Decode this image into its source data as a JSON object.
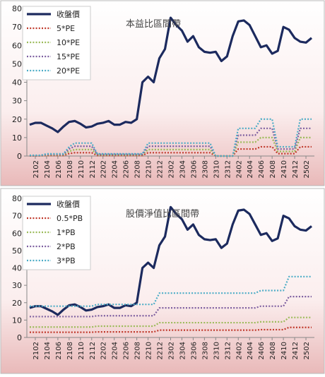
{
  "chart_data": [
    {
      "type": "line",
      "title": "本益比區間帶",
      "legend": "upper left",
      "grid": false,
      "categories": [
        null,
        "2102",
        null,
        "2104",
        null,
        "2106",
        null,
        "2108",
        null,
        "2110",
        null,
        "2112",
        null,
        "2202",
        null,
        "2204",
        null,
        "2206",
        null,
        "2208",
        null,
        "2210",
        null,
        "2212",
        null,
        "2302",
        null,
        "2304",
        null,
        "2306",
        null,
        "2308",
        null,
        "2310",
        null,
        "2312",
        null,
        "2402",
        null,
        "2404",
        null,
        "2406",
        null,
        "2408",
        null,
        "2410",
        null,
        "2412",
        null,
        "2502",
        null
      ],
      "ylim": [
        0,
        80
      ],
      "yticks": [
        0,
        10,
        20,
        30,
        40,
        50,
        60,
        70,
        80
      ],
      "series": [
        {
          "name": "收盤價",
          "color": "#1c2a5e",
          "width": 3.2,
          "values": [
            17,
            18,
            18,
            16.5,
            15,
            13,
            16,
            18.5,
            19,
            17.5,
            15.5,
            16,
            17.5,
            18,
            19,
            17,
            17,
            18.5,
            18,
            20,
            40,
            43,
            40,
            53,
            58,
            75,
            71,
            68,
            62,
            65,
            59,
            56.5,
            56,
            56.5,
            51.5,
            54,
            65,
            73,
            73.5,
            71,
            65,
            59,
            60,
            55.5,
            57,
            70,
            68.5,
            64,
            62,
            61.5,
            64
          ]
        },
        {
          "name": "5*PE",
          "color": "#c0392b",
          "width": 2.2,
          "values": [
            0.1,
            0.1,
            0.1,
            0.3,
            0.3,
            0.3,
            0.3,
            1.3,
            1.8,
            1.8,
            1.8,
            1.8,
            0.3,
            0.3,
            0.3,
            0.3,
            0.3,
            0.3,
            0.3,
            0.3,
            0.3,
            1.8,
            1.8,
            1.8,
            1.8,
            1.8,
            1.8,
            1.8,
            1.8,
            1.8,
            1.8,
            1.8,
            1.8,
            0,
            0,
            0,
            0,
            3.8,
            3.8,
            3.8,
            3.8,
            5,
            5,
            5,
            1.3,
            1.3,
            1.3,
            1.3,
            5,
            5,
            5
          ]
        },
        {
          "name": "10*PE",
          "color": "#9bbb59",
          "width": 2.2,
          "values": [
            0.2,
            0.2,
            0.2,
            0.6,
            0.6,
            0.6,
            0.6,
            2.5,
            3.5,
            3.5,
            3.5,
            3.5,
            0.6,
            0.6,
            0.6,
            0.6,
            0.6,
            0.6,
            0.6,
            0.6,
            0.6,
            3.5,
            3.5,
            3.5,
            3.5,
            3.5,
            3.5,
            3.5,
            3.5,
            3.5,
            3.5,
            3.5,
            3.5,
            0,
            0,
            0,
            0,
            7.5,
            7.5,
            7.5,
            7.5,
            10,
            10,
            10,
            2.5,
            2.5,
            2.5,
            2.5,
            10,
            10,
            10
          ]
        },
        {
          "name": "15*PE",
          "color": "#7d5fa0",
          "width": 2.2,
          "values": [
            0.3,
            0.3,
            0.3,
            0.9,
            0.9,
            0.9,
            0.9,
            3.8,
            5.3,
            5.3,
            5.3,
            5.3,
            0.9,
            0.9,
            0.9,
            0.9,
            0.9,
            0.9,
            0.9,
            0.9,
            0.9,
            5.3,
            5.3,
            5.3,
            5.3,
            5.3,
            5.3,
            5.3,
            5.3,
            5.3,
            5.3,
            5.3,
            5.3,
            0,
            0,
            0,
            0,
            11.3,
            11.3,
            11.3,
            11.3,
            15,
            15,
            15,
            3.8,
            3.8,
            3.8,
            3.8,
            15,
            15,
            15
          ]
        },
        {
          "name": "20*PE",
          "color": "#4bacc6",
          "width": 2.2,
          "values": [
            0.4,
            0.4,
            0.4,
            1.2,
            1.2,
            1.2,
            1.2,
            5,
            7,
            7,
            7,
            7,
            1.2,
            1.2,
            1.2,
            1.2,
            1.2,
            1.2,
            1.2,
            1.2,
            1.2,
            7,
            7,
            7,
            7,
            7,
            7,
            7,
            7,
            7,
            7,
            7,
            7,
            0,
            0,
            0,
            0,
            15,
            15,
            15,
            15,
            20,
            20,
            20,
            5,
            5,
            5,
            5,
            20,
            20,
            20
          ]
        }
      ]
    },
    {
      "type": "line",
      "title": "股價淨值比區間帶",
      "legend": "upper left",
      "grid": false,
      "categories": [
        null,
        "2102",
        null,
        "2104",
        null,
        "2106",
        null,
        "2108",
        null,
        "2110",
        null,
        "2112",
        null,
        "2202",
        null,
        "2204",
        null,
        "2206",
        null,
        "2208",
        null,
        "2210",
        null,
        "2212",
        null,
        "2302",
        null,
        "2304",
        null,
        "2306",
        null,
        "2308",
        null,
        "2310",
        null,
        "2312",
        null,
        "2402",
        null,
        "2404",
        null,
        "2406",
        null,
        "2408",
        null,
        "2410",
        null,
        "2412",
        null,
        "2502",
        null
      ],
      "ylim": [
        0,
        80
      ],
      "yticks": [
        0,
        10,
        20,
        30,
        40,
        50,
        60,
        70,
        80
      ],
      "series": [
        {
          "name": "收盤價",
          "color": "#1c2a5e",
          "width": 3.2,
          "values": [
            17,
            18,
            18,
            16.5,
            15,
            13,
            16,
            18.5,
            19,
            17.5,
            15.5,
            16,
            17.5,
            18,
            19,
            17,
            17,
            18.5,
            18,
            20,
            40,
            43,
            40,
            53,
            58,
            75,
            71,
            68,
            62,
            65,
            59,
            56.5,
            56,
            56.5,
            51.5,
            54,
            65,
            73,
            73.5,
            71,
            65,
            59,
            60,
            55.5,
            57,
            70,
            68.5,
            64,
            62,
            61.5,
            64
          ]
        },
        {
          "name": "0.5*PB",
          "color": "#c0392b",
          "width": 2.2,
          "values": [
            3,
            3,
            3,
            3,
            3,
            3,
            3,
            3,
            3,
            3,
            3,
            3,
            3.2,
            3.2,
            3.2,
            3.2,
            3.2,
            3.2,
            3.2,
            3.2,
            3.2,
            3.2,
            3.2,
            4.2,
            4.2,
            4.2,
            4.2,
            4.2,
            4.2,
            4.2,
            4.2,
            4.2,
            4.2,
            4.2,
            4.2,
            4.2,
            4.2,
            4.2,
            4.2,
            4.2,
            4.2,
            4.5,
            4.5,
            4.5,
            4.5,
            4.5,
            5.8,
            5.8,
            5.8,
            5.8,
            5.8
          ]
        },
        {
          "name": "1*PB",
          "color": "#9bbb59",
          "width": 2.2,
          "values": [
            6,
            6,
            6,
            6,
            6,
            6,
            6,
            6,
            6,
            6,
            6,
            6,
            6.5,
            6.5,
            6.5,
            6.5,
            6.5,
            6.5,
            6.5,
            6.5,
            6.5,
            6.5,
            6.5,
            8.5,
            8.5,
            8.5,
            8.5,
            8.5,
            8.5,
            8.5,
            8.5,
            8.5,
            8.5,
            8.5,
            8.5,
            8.5,
            8.5,
            8.5,
            8.5,
            8.5,
            8.5,
            9,
            9,
            9,
            9,
            9,
            11.5,
            11.5,
            11.5,
            11.5,
            11.5
          ]
        },
        {
          "name": "2*PB",
          "color": "#7d5fa0",
          "width": 2.2,
          "values": [
            12,
            12,
            12,
            12,
            12,
            12,
            12,
            12,
            12,
            12,
            12,
            12,
            12.5,
            12.5,
            12.5,
            12.5,
            12.5,
            12.5,
            12.5,
            12.5,
            12.5,
            12.5,
            12.5,
            17,
            17,
            17,
            17,
            17,
            17,
            17,
            17,
            17,
            17,
            17,
            17,
            17,
            17,
            17,
            17,
            17,
            17,
            18,
            18,
            18,
            18,
            18,
            23.5,
            23.5,
            23.5,
            23.5,
            23.5
          ]
        },
        {
          "name": "3*PB",
          "color": "#4bacc6",
          "width": 2.2,
          "values": [
            18,
            18,
            18,
            18,
            18,
            18,
            18,
            18,
            18,
            18,
            18,
            18,
            19,
            19,
            19,
            19,
            19,
            19,
            19,
            19,
            19,
            19,
            19,
            25.5,
            25.5,
            25.5,
            25.5,
            25.5,
            25.5,
            25.5,
            25.5,
            25.5,
            25.5,
            25.5,
            25.5,
            25.5,
            25.5,
            25.5,
            25.5,
            25.5,
            25.5,
            27,
            27,
            27,
            27,
            27,
            35,
            35,
            35,
            35,
            35
          ]
        }
      ]
    }
  ]
}
